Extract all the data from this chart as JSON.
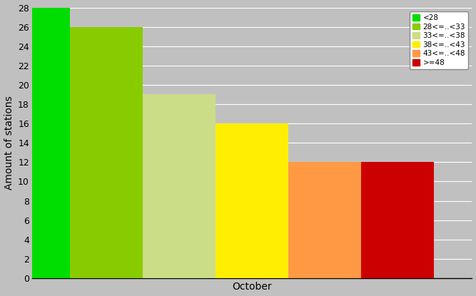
{
  "bars": [
    {
      "label": "<28",
      "value": 28,
      "color": "#00dd00"
    },
    {
      "label": "28<=..<33",
      "value": 26,
      "color": "#88cc00"
    },
    {
      "label": "33<=..<38",
      "value": 19,
      "color": "#ccdd88"
    },
    {
      "label": "38<=..<43",
      "value": 16,
      "color": "#ffee00"
    },
    {
      "label": "43<=..<48",
      "value": 12,
      "color": "#ff9944"
    },
    {
      "label": ">=48",
      "value": 12,
      "color": "#cc0000"
    }
  ],
  "ylabel": "Amount of stations",
  "xlabel": "October",
  "ylim": [
    0,
    28
  ],
  "yticks": [
    0,
    2,
    4,
    6,
    8,
    10,
    12,
    14,
    16,
    18,
    20,
    22,
    24,
    26,
    28
  ],
  "bg_color": "#c0c0c0",
  "grid_color": "#ffffff",
  "legend_fontsize": 7.5,
  "ylabel_fontsize": 10,
  "xlabel_fontsize": 10,
  "tick_fontsize": 9
}
